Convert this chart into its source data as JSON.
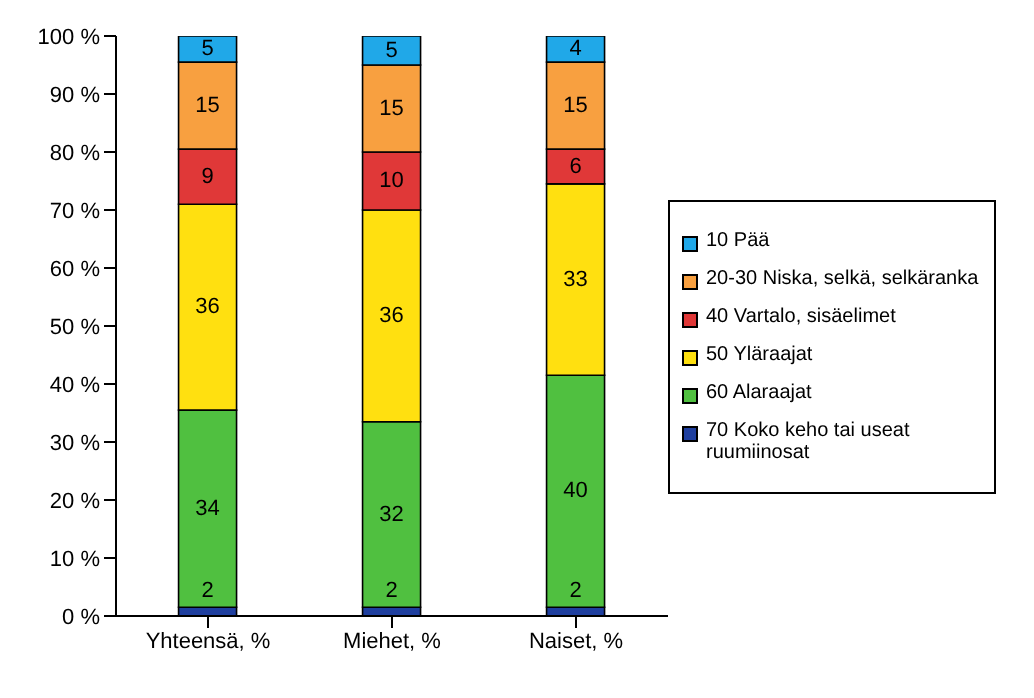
{
  "chart_data": {
    "type": "bar",
    "stacked": true,
    "categories": [
      "Yhteensä, %",
      "Miehet, %",
      "Naiset, %"
    ],
    "series": [
      {
        "name": "70 Koko keho tai useat ruumiinosat",
        "color": "#1f3f9f",
        "values": [
          1.5,
          1.5,
          1.5
        ],
        "value_labels": [
          "2",
          "2",
          "2"
        ]
      },
      {
        "name": "60 Alaraajat",
        "color": "#50c040",
        "values": [
          34,
          32,
          40
        ],
        "value_labels": [
          "34",
          "32",
          "40"
        ]
      },
      {
        "name": "50 Yläraajat",
        "color": "#ffe010",
        "values": [
          35.5,
          36.5,
          33
        ],
        "value_labels": [
          "36",
          "36",
          "33"
        ]
      },
      {
        "name": "40 Vartalo, sisäelimet",
        "color": "#e03838",
        "values": [
          9.5,
          10,
          6
        ],
        "value_labels": [
          "9",
          "10",
          "6"
        ]
      },
      {
        "name": "20-30 Niska, selkä, selkäranka",
        "color": "#f8a040",
        "values": [
          15,
          15,
          15
        ],
        "value_labels": [
          "15",
          "15",
          "15"
        ]
      },
      {
        "name": "10 Pää",
        "color": "#20a8e8",
        "values": [
          4.5,
          5,
          4.5
        ],
        "value_labels": [
          "5",
          "5",
          "4"
        ]
      }
    ],
    "ylim": [
      0,
      100
    ],
    "yticks": [
      {
        "value": 0,
        "label": "0 %"
      },
      {
        "value": 10,
        "label": "10 %"
      },
      {
        "value": 20,
        "label": "20 %"
      },
      {
        "value": 30,
        "label": "30 %"
      },
      {
        "value": 40,
        "label": "40 %"
      },
      {
        "value": 50,
        "label": "50 %"
      },
      {
        "value": 60,
        "label": "60 %"
      },
      {
        "value": 70,
        "label": "70 %"
      },
      {
        "value": 80,
        "label": "80 %"
      },
      {
        "value": 90,
        "label": "90 %"
      },
      {
        "value": 100,
        "label": "100 %"
      }
    ],
    "legend": "right"
  }
}
